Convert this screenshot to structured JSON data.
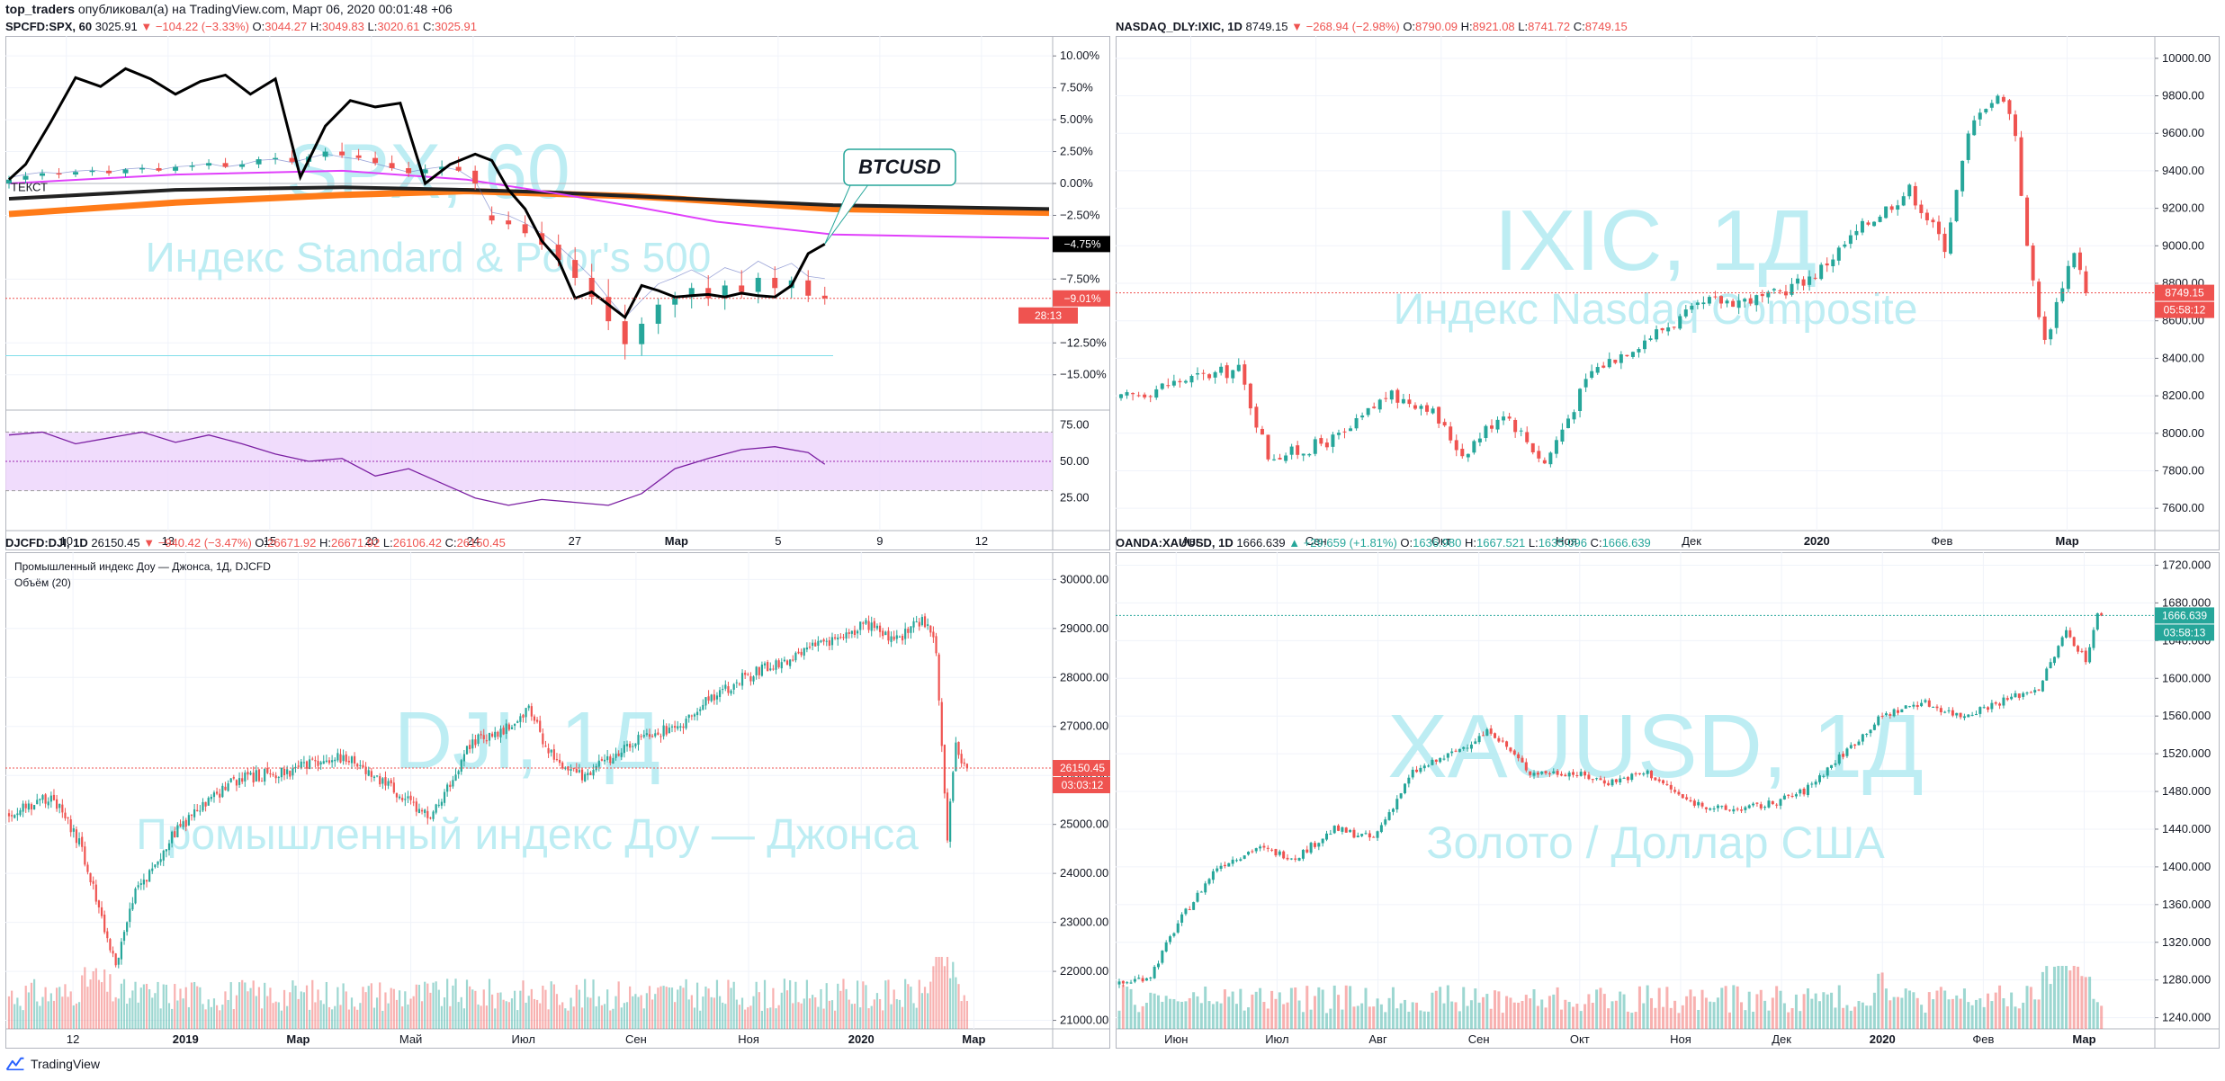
{
  "header": {
    "author": "top_traders",
    "published_text": " опубликовал(а) на TradingView.com, Март 06, 2020 00:01:48 +06"
  },
  "footer": {
    "brand": "TradingView"
  },
  "colors": {
    "up": "#26a69a",
    "down": "#ef5350",
    "watermark": "#b2ebf2",
    "btc_line": "#000000",
    "ma_magenta": "#e040fb",
    "ma_orange": "#ff7b18",
    "rsi_fill": "#ecd3fb",
    "rsi_line": "#7b1fa2"
  },
  "panels": [
    {
      "id": "spx",
      "title": {
        "symbol": "SPCFD:SPX, 60",
        "last": "3025.91",
        "change": "−104.22 (−3.33%)",
        "o": "3044.27",
        "h": "3049.83",
        "l": "3020.61",
        "c": "3025.91"
      },
      "watermark": {
        "big": "SPX, 60",
        "small": "Индекс Standard & Poor's 500"
      },
      "chart_data": {
        "type": "candlestick",
        "x_tick_labels": [
          "10",
          "13",
          "15",
          "20",
          "24",
          "27",
          "Мар",
          "5",
          "9",
          "12"
        ],
        "y_axis_unit": "percent",
        "y_tick_labels": [
          "10.00%",
          "7.50%",
          "5.00%",
          "2.50%",
          "0.00%",
          "−2.50%",
          "−7.50%",
          "−12.50%",
          "−15.00%"
        ],
        "ylim": [
          -16.5,
          11
        ],
        "price_labels": {
          "current_pct": "−9.01%",
          "countdown": "28:13",
          "btc_pct": "−4.75%"
        },
        "annotation": "BTCUSD",
        "note_label": "ТЕКСТ",
        "overlay_series": [
          {
            "name": "BTCUSD",
            "x": [
              0,
              2,
              5,
              8,
              11,
              14,
              17,
              20,
              23,
              26,
              29,
              32,
              35,
              38,
              41,
              44,
              47,
              50,
              53,
              56,
              58,
              60,
              62,
              64,
              66,
              68,
              70,
              72,
              74,
              76,
              78,
              80,
              82,
              84,
              86,
              88,
              90,
              92,
              94,
              96,
              98
            ],
            "values": [
              0.3,
              1.5,
              4.8,
              8.3,
              7.6,
              9.0,
              8.2,
              7.0,
              8.0,
              8.5,
              7.0,
              8.2,
              0.5,
              4.5,
              6.5,
              6.0,
              6.3,
              0.0,
              1.5,
              2.3,
              1.8,
              -0.5,
              -2.0,
              -4.5,
              -6.0,
              -9.0,
              -8.5,
              -9.5,
              -10.5,
              -8.0,
              -8.4,
              -8.9,
              -8.8,
              -8.7,
              -8.9,
              -8.6,
              -8.8,
              -8.9,
              -8.0,
              -5.5,
              -4.75
            ]
          },
          {
            "name": "MA",
            "x": [
              0,
              20,
              40,
              55,
              65,
              75,
              85,
              99
            ],
            "values": [
              0.0,
              0.7,
              1.0,
              0.3,
              -0.7,
              -1.8,
              -3.0,
              -4.0
            ]
          },
          {
            "name": "MA",
            "x": [
              0,
              20,
              40,
              55,
              65,
              75,
              85,
              99
            ],
            "values": [
              -2.4,
              -1.5,
              -0.9,
              -0.6,
              -0.8,
              -1.0,
              -1.4,
              -2.0
            ]
          },
          {
            "name": "MA",
            "x": [
              0,
              20,
              40,
              55,
              65,
              75,
              85,
              99
            ],
            "values": [
              -1.2,
              -0.5,
              -0.3,
              -0.5,
              -0.7,
              -1.0,
              -1.3,
              -1.7
            ]
          }
        ],
        "candles": [
          {
            "x": 0,
            "o": 0.0,
            "h": 0.6,
            "l": -0.4,
            "c": 0.3
          },
          {
            "x": 2,
            "o": 0.3,
            "h": 0.9,
            "l": 0.0,
            "c": 0.6
          },
          {
            "x": 4,
            "o": 0.6,
            "h": 1.1,
            "l": 0.3,
            "c": 0.8
          },
          {
            "x": 6,
            "o": 0.8,
            "h": 1.2,
            "l": 0.4,
            "c": 0.7
          },
          {
            "x": 8,
            "o": 0.7,
            "h": 1.1,
            "l": 0.5,
            "c": 0.9
          },
          {
            "x": 10,
            "o": 0.9,
            "h": 1.3,
            "l": 0.6,
            "c": 1.0
          },
          {
            "x": 12,
            "o": 1.0,
            "h": 1.4,
            "l": 0.6,
            "c": 0.8
          },
          {
            "x": 14,
            "o": 0.8,
            "h": 1.2,
            "l": 0.5,
            "c": 1.1
          },
          {
            "x": 16,
            "o": 1.1,
            "h": 1.5,
            "l": 0.8,
            "c": 1.2
          },
          {
            "x": 18,
            "o": 1.2,
            "h": 1.6,
            "l": 0.9,
            "c": 1.0
          },
          {
            "x": 20,
            "o": 1.0,
            "h": 1.5,
            "l": 0.8,
            "c": 1.3
          },
          {
            "x": 22,
            "o": 1.3,
            "h": 1.7,
            "l": 1.0,
            "c": 1.4
          },
          {
            "x": 24,
            "o": 1.4,
            "h": 1.9,
            "l": 1.1,
            "c": 1.6
          },
          {
            "x": 26,
            "o": 1.6,
            "h": 2.0,
            "l": 1.2,
            "c": 1.3
          },
          {
            "x": 28,
            "o": 1.3,
            "h": 1.8,
            "l": 1.1,
            "c": 1.5
          },
          {
            "x": 30,
            "o": 1.5,
            "h": 2.1,
            "l": 1.2,
            "c": 1.9
          },
          {
            "x": 32,
            "o": 1.9,
            "h": 2.4,
            "l": 1.5,
            "c": 2.0
          },
          {
            "x": 34,
            "o": 2.0,
            "h": 2.6,
            "l": 1.5,
            "c": 1.7
          },
          {
            "x": 36,
            "o": 1.7,
            "h": 2.3,
            "l": 1.3,
            "c": 2.1
          },
          {
            "x": 38,
            "o": 2.1,
            "h": 2.8,
            "l": 1.8,
            "c": 2.5
          },
          {
            "x": 40,
            "o": 2.5,
            "h": 3.2,
            "l": 2.0,
            "c": 2.2
          },
          {
            "x": 42,
            "o": 2.2,
            "h": 2.7,
            "l": 1.8,
            "c": 2.0
          },
          {
            "x": 44,
            "o": 2.0,
            "h": 2.5,
            "l": 1.4,
            "c": 1.6
          },
          {
            "x": 46,
            "o": 1.6,
            "h": 2.2,
            "l": 1.0,
            "c": 1.2
          },
          {
            "x": 48,
            "o": 1.2,
            "h": 1.7,
            "l": 0.5,
            "c": 0.8
          },
          {
            "x": 50,
            "o": 0.8,
            "h": 1.5,
            "l": 0.3,
            "c": 1.1
          },
          {
            "x": 52,
            "o": 1.1,
            "h": 1.8,
            "l": 0.6,
            "c": 1.3
          },
          {
            "x": 54,
            "o": 1.3,
            "h": 2.1,
            "l": 0.9,
            "c": 1.0
          },
          {
            "x": 56,
            "o": 1.0,
            "h": 1.4,
            "l": -0.5,
            "c": 0.0
          },
          {
            "x": 58,
            "o": -2.5,
            "h": -1.8,
            "l": -3.2,
            "c": -2.9
          },
          {
            "x": 60,
            "o": -2.9,
            "h": -2.2,
            "l": -3.6,
            "c": -3.2
          },
          {
            "x": 62,
            "o": -3.2,
            "h": -2.5,
            "l": -4.2,
            "c": -3.9
          },
          {
            "x": 64,
            "o": -3.9,
            "h": -3.0,
            "l": -5.2,
            "c": -4.8
          },
          {
            "x": 66,
            "o": -4.8,
            "h": -4.0,
            "l": -6.5,
            "c": -6.0
          },
          {
            "x": 68,
            "o": -6.0,
            "h": -5.0,
            "l": -8.0,
            "c": -7.4
          },
          {
            "x": 70,
            "o": -7.4,
            "h": -6.3,
            "l": -9.5,
            "c": -8.9
          },
          {
            "x": 72,
            "o": -8.9,
            "h": -7.5,
            "l": -11.5,
            "c": -10.8
          },
          {
            "x": 74,
            "o": -10.8,
            "h": -9.5,
            "l": -13.8,
            "c": -12.6
          },
          {
            "x": 76,
            "o": -12.6,
            "h": -10.5,
            "l": -13.5,
            "c": -11.0
          },
          {
            "x": 78,
            "o": -11.0,
            "h": -9.0,
            "l": -11.8,
            "c": -9.5
          },
          {
            "x": 80,
            "o": -9.5,
            "h": -8.5,
            "l": -10.5,
            "c": -8.9
          },
          {
            "x": 82,
            "o": -8.9,
            "h": -7.8,
            "l": -9.8,
            "c": -8.2
          },
          {
            "x": 84,
            "o": -8.2,
            "h": -7.2,
            "l": -9.6,
            "c": -9.0
          },
          {
            "x": 86,
            "o": -9.0,
            "h": -7.6,
            "l": -9.9,
            "c": -8.0
          },
          {
            "x": 88,
            "o": -8.0,
            "h": -6.8,
            "l": -9.0,
            "c": -8.5
          },
          {
            "x": 90,
            "o": -8.5,
            "h": -7.0,
            "l": -9.4,
            "c": -7.4
          },
          {
            "x": 92,
            "o": -7.4,
            "h": -6.5,
            "l": -8.8,
            "c": -8.2
          },
          {
            "x": 94,
            "o": -8.2,
            "h": -7.3,
            "l": -9.0,
            "c": -7.6
          },
          {
            "x": 96,
            "o": -7.6,
            "h": -6.8,
            "l": -9.3,
            "c": -8.8
          },
          {
            "x": 98,
            "o": -8.8,
            "h": -8.1,
            "l": -9.5,
            "c": -9.01
          }
        ],
        "indicator": {
          "name": "RSI",
          "y_tick_labels": [
            "75.00",
            "50.00",
            "25.00"
          ],
          "ylim": [
            15,
            85
          ],
          "x": [
            0,
            4,
            8,
            12,
            16,
            20,
            24,
            28,
            32,
            36,
            40,
            44,
            48,
            52,
            56,
            60,
            64,
            68,
            72,
            76,
            80,
            84,
            88,
            92,
            96,
            98
          ],
          "values": [
            68,
            70,
            62,
            66,
            70,
            63,
            68,
            62,
            55,
            50,
            52,
            40,
            45,
            35,
            25,
            20,
            24,
            22,
            20,
            28,
            45,
            52,
            58,
            60,
            56,
            48
          ]
        }
      }
    },
    {
      "id": "ixic",
      "title": {
        "symbol": "NASDAQ_DLY:IXIC, 1D",
        "last": "8749.15",
        "change": "−268.94 (−2.98%)",
        "o": "8790.09",
        "h": "8921.08",
        "l": "8741.72",
        "c": "8749.15"
      },
      "watermark": {
        "big": "IXIC, 1Д",
        "small": "Индекс Nasdaq Composite"
      },
      "chart_data": {
        "type": "candlestick",
        "x_tick_labels": [
          "Авг",
          "Сен",
          "Окт",
          "Ноя",
          "Дек",
          "2020",
          "Фев",
          "Мар"
        ],
        "y_tick_labels": [
          "10000.00",
          "9800.00",
          "9600.00",
          "9400.00",
          "9200.00",
          "9000.00",
          "8800.00",
          "8600.00",
          "8400.00",
          "8200.00",
          "8000.00",
          "7800.00",
          "7600.00"
        ],
        "ylim": [
          7500,
          10100
        ],
        "price_labels": {
          "last": "8749.15",
          "countdown": "05:58:12"
        },
        "close_anchors": {
          "x": [
            0,
            10,
            20,
            25,
            30,
            38,
            45,
            52,
            58,
            65,
            72,
            80,
            90,
            100,
            110,
            118,
            126,
            134,
            140,
            144,
            146,
            150,
            152,
            154,
            157,
            160,
            162,
            164
          ],
          "values": [
            8180,
            8280,
            8340,
            7880,
            7900,
            7990,
            8200,
            8150,
            7890,
            8120,
            7840,
            8330,
            8520,
            8700,
            8720,
            8850,
            9100,
            9300,
            9000,
            9580,
            9740,
            9800,
            9600,
            8980,
            8480,
            8800,
            8980,
            8749.15
          ]
        }
      }
    },
    {
      "id": "dji",
      "title": {
        "symbol": "DJCFD:DJI, 1D",
        "last": "26150.45",
        "change": "−940.42 (−3.47%)",
        "o": "26671.92",
        "h": "26671.92",
        "l": "26106.42",
        "c": "26150.45"
      },
      "legend": {
        "name": "Промышленный индекс Доу — Джонса, 1Д, DJCFD",
        "volume": "Объём (20)"
      },
      "watermark": {
        "big": "DJI, 1Д",
        "small": "Промышленный индекс Доу — Джонса"
      },
      "chart_data": {
        "type": "candlestick",
        "x_tick_labels": [
          "12",
          "2019",
          "Мар",
          "Май",
          "Июл",
          "Сен",
          "Ноя",
          "2020",
          "Мар"
        ],
        "y_tick_labels": [
          "30000.00",
          "29000.00",
          "28000.00",
          "27000.00",
          "26000.00",
          "25000.00",
          "24000.00",
          "23000.00",
          "22000.00",
          "21000.00"
        ],
        "ylim": [
          20900,
          30300
        ],
        "price_labels": {
          "last": "26150.45",
          "countdown": "03:03:12"
        },
        "close_anchors": {
          "x": [
            0,
            15,
            25,
            30,
            38,
            45,
            60,
            80,
            100,
            120,
            135,
            150,
            165,
            175,
            185,
            195,
            205,
            215,
            225,
            238,
            250,
            262,
            275,
            290,
            305,
            315,
            325,
            330,
            334,
            337,
            340
          ],
          "values": [
            25200,
            25600,
            24600,
            23700,
            22100,
            23600,
            24900,
            25900,
            26100,
            26400,
            25800,
            25100,
            26700,
            26900,
            27300,
            26200,
            26000,
            26400,
            26800,
            27000,
            27600,
            28000,
            28300,
            28700,
            29100,
            28700,
            29200,
            28600,
            24800,
            26700,
            26150.45
          ]
        },
        "volume": {
          "name": "Объём (20)"
        }
      }
    },
    {
      "id": "xauusd",
      "title": {
        "symbol": "OANDA:XAUUSD, 1D",
        "last": "1666.639",
        "change": "+29.659 (+1.81%)",
        "o": "1636.980",
        "h": "1667.521",
        "l": "1635.096",
        "c": "1666.639"
      },
      "watermark": {
        "big": "XAUUSD, 1Д",
        "small": "Золото / Доллар США"
      },
      "chart_data": {
        "type": "candlestick",
        "x_tick_labels": [
          "Июн",
          "Июл",
          "Авг",
          "Сен",
          "Окт",
          "Ноя",
          "Дек",
          "2020",
          "Фев",
          "Мар"
        ],
        "y_tick_labels": [
          "1720.000",
          "1680.000",
          "1640.000",
          "1600.000",
          "1560.000",
          "1520.000",
          "1480.000",
          "1440.000",
          "1400.000",
          "1360.000",
          "1320.000",
          "1280.000",
          "1240.000"
        ],
        "ylim": [
          1232,
          1730
        ],
        "price_labels": {
          "last": "1666.639",
          "countdown": "03:58:13"
        },
        "close_anchors": {
          "x": [
            0,
            8,
            15,
            25,
            35,
            45,
            55,
            65,
            75,
            85,
            95,
            105,
            115,
            125,
            135,
            145,
            155,
            165,
            175,
            185,
            195,
            205,
            215,
            225,
            235,
            242,
            247,
            250
          ],
          "values": [
            1275,
            1285,
            1340,
            1400,
            1420,
            1410,
            1440,
            1430,
            1500,
            1520,
            1545,
            1500,
            1500,
            1490,
            1500,
            1470,
            1460,
            1465,
            1480,
            1520,
            1560,
            1575,
            1560,
            1575,
            1590,
            1650,
            1620,
            1666.639
          ]
        },
        "volume": {
          "name": "Volume"
        }
      }
    }
  ]
}
